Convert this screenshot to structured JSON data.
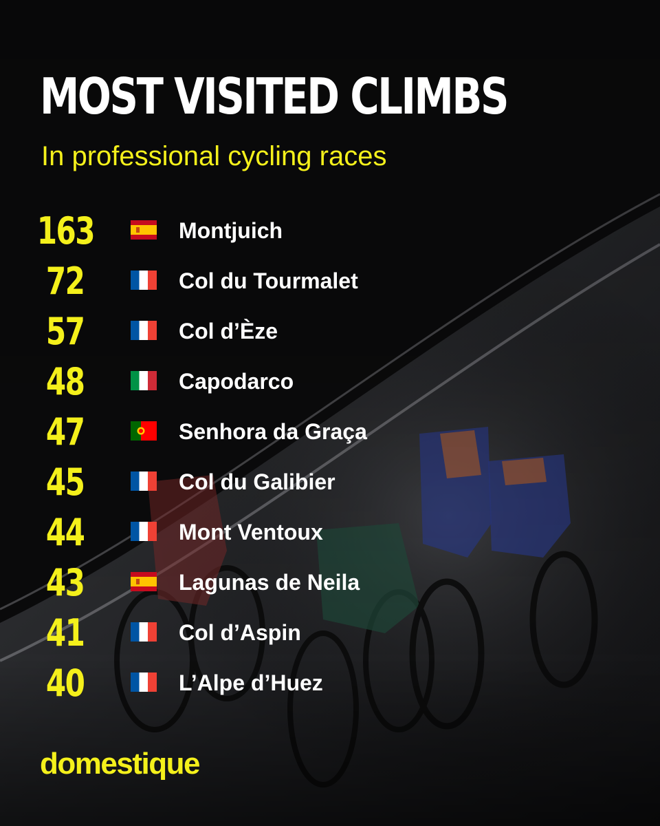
{
  "colors": {
    "accent": "#f4f01b",
    "text": "#ffffff",
    "background": "#0b0b0c"
  },
  "header": {
    "title": "MOST VISITED CLIMBS",
    "subtitle": "In professional cycling races"
  },
  "ranking": [
    {
      "count": "163",
      "climb": "Montjuich",
      "flag": "es"
    },
    {
      "count": "72",
      "climb": "Col du Tourmalet",
      "flag": "fr"
    },
    {
      "count": "57",
      "climb": "Col d’Èze",
      "flag": "fr"
    },
    {
      "count": "48",
      "climb": "Capodarco",
      "flag": "it"
    },
    {
      "count": "47",
      "climb": "Senhora da Graça",
      "flag": "pt"
    },
    {
      "count": "45",
      "climb": "Col du Galibier",
      "flag": "fr"
    },
    {
      "count": "44",
      "climb": "Mont Ventoux",
      "flag": "fr"
    },
    {
      "count": "43",
      "climb": "Lagunas de Neila",
      "flag": "es"
    },
    {
      "count": "41",
      "climb": "Col d’Aspin",
      "flag": "fr"
    },
    {
      "count": "40",
      "climb": "L’Alpe d’Huez",
      "flag": "fr"
    }
  ],
  "brand": {
    "logo_text": "domestique"
  }
}
